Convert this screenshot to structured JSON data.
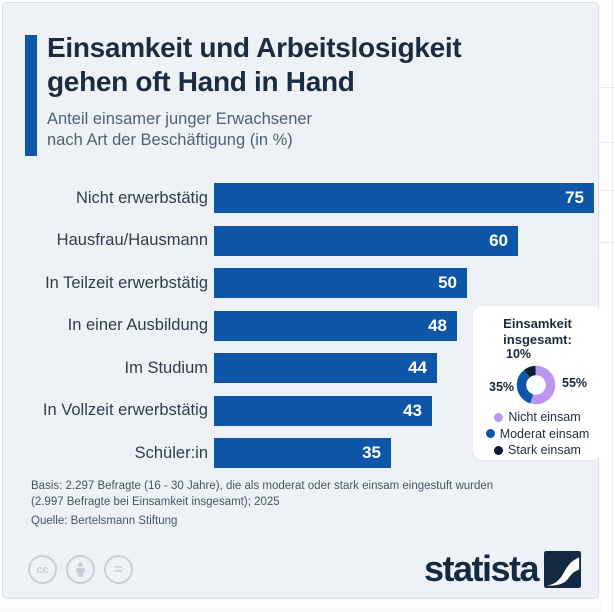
{
  "header": {
    "title_line1": "Einsamkeit und Arbeitslosigkeit",
    "title_line2": "gehen oft Hand in Hand",
    "subtitle_line1": "Anteil einsamer junger Erwachsener",
    "subtitle_line2": "nach Art der Beschäftigung (in %)"
  },
  "chart_data": {
    "type": "bar",
    "orientation": "horizontal",
    "unit": "%",
    "categories": [
      "Nicht erwerbstätig",
      "Hausfrau/Hausmann",
      "In Teilzeit erwerbstätig",
      "In einer Ausbildung",
      "Im Studium",
      "In Vollzeit erwerbstätig",
      "Schüler:in"
    ],
    "values": [
      75,
      60,
      50,
      48,
      44,
      43,
      35
    ],
    "value_labels_inside_bars": true,
    "axis_visible": false,
    "bar_color": "#0e57a8",
    "donut": {
      "type": "pie",
      "title_line1": "Einsamkeit",
      "title_line2": "insgesamt:",
      "segments": [
        {
          "label": "Nicht einsam",
          "value": 55,
          "value_label": "55%",
          "color": "#bb96f0"
        },
        {
          "label": "Moderat einsam",
          "value": 35,
          "value_label": "35%",
          "color": "#0e57a8"
        },
        {
          "label": "Stark einsam",
          "value": 10,
          "value_label": "10%",
          "color": "#0d1c33"
        }
      ]
    }
  },
  "footer": {
    "basis_line1": "Basis: 2.297 Befragte (16 - 30 Jahre), die als moderat oder stark einsam eingestuft wurden",
    "basis_line2": "(2.997 Befragte bei Einsamkeit insgesamt); 2025",
    "source": "Quelle: Bertelsmann Stiftung",
    "cc_icons": [
      "cc",
      "person",
      "="
    ],
    "brand": "statista"
  },
  "colors": {
    "accent_blue": "#0e57a8",
    "title_navy": "#1b2c42",
    "card_background": "#eef2f7",
    "purple": "#bb96f0",
    "dark_segment": "#0d1c33",
    "footer_text": "#44566b"
  }
}
